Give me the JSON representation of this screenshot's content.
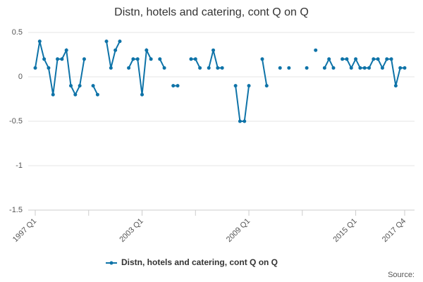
{
  "chart_data": {
    "type": "line",
    "title": "Distn, hotels and catering, cont Q on Q",
    "categories": [
      "1997 Q1",
      null,
      null,
      null,
      null,
      null,
      null,
      null,
      null,
      null,
      null,
      null,
      null,
      null,
      null,
      null,
      null,
      null,
      null,
      null,
      null,
      null,
      null,
      null,
      "2003 Q1",
      null,
      null,
      null,
      null,
      null,
      null,
      null,
      null,
      null,
      null,
      null,
      null,
      null,
      null,
      null,
      null,
      null,
      null,
      null,
      null,
      null,
      null,
      null,
      "2009 Q1",
      null,
      null,
      null,
      null,
      null,
      null,
      null,
      null,
      null,
      null,
      null,
      null,
      null,
      null,
      null,
      null,
      null,
      null,
      null,
      null,
      null,
      null,
      null,
      "2015 Q1",
      null,
      null,
      null,
      null,
      null,
      null,
      null,
      null,
      null,
      null,
      "2017 Q4"
    ],
    "series": [
      {
        "name": "Distn, hotels and catering, cont Q on Q",
        "color": "#0e73a8",
        "values": [
          0.1,
          0.4,
          0.2,
          0.1,
          -0.2,
          0.2,
          0.2,
          0.3,
          -0.1,
          -0.2,
          -0.1,
          0.2,
          null,
          -0.1,
          -0.2,
          null,
          0.4,
          0.1,
          0.3,
          0.4,
          null,
          0.1,
          0.2,
          0.2,
          -0.2,
          0.3,
          0.2,
          null,
          0.2,
          0.1,
          null,
          -0.1,
          -0.1,
          null,
          null,
          0.2,
          0.2,
          0.1,
          null,
          0.1,
          0.3,
          0.1,
          0.1,
          null,
          null,
          -0.1,
          -0.5,
          -0.5,
          -0.1,
          null,
          null,
          0.2,
          -0.1,
          null,
          null,
          0.1,
          null,
          0.1,
          null,
          null,
          null,
          0.1,
          null,
          0.3,
          null,
          0.1,
          0.2,
          0.1,
          null,
          0.2,
          0.2,
          0.1,
          0.2,
          0.1,
          0.1,
          0.1,
          0.2,
          0.2,
          0.1,
          0.2,
          0.2,
          -0.1,
          0.1,
          0.1
        ]
      }
    ],
    "ylim": [
      -1.5,
      0.5
    ],
    "yticks": [
      0.5,
      0,
      -0.5,
      -1,
      -1.5
    ],
    "grid": true,
    "source": "Source:"
  }
}
